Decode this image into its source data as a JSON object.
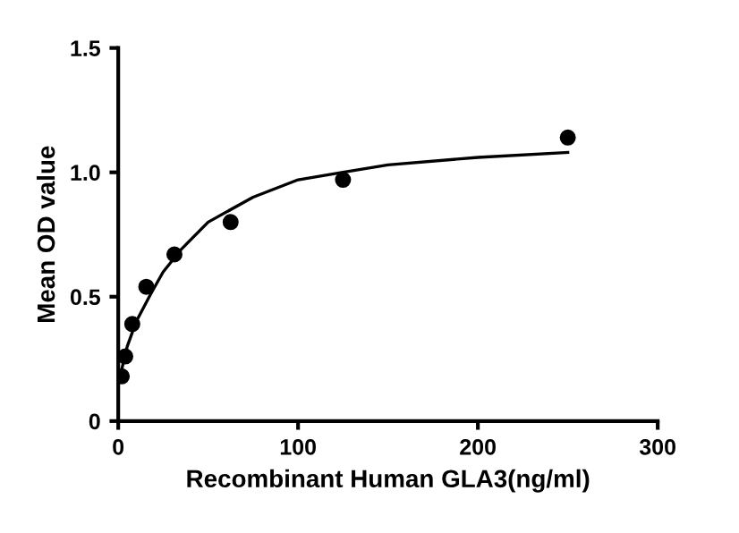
{
  "chart_data": {
    "type": "scatter",
    "xlabel": "Recombinant Human GLA3(ng/ml)",
    "ylabel": "Mean OD value",
    "xlim": [
      0,
      300
    ],
    "xticks": [
      0,
      100,
      200,
      300
    ],
    "ylim": [
      0,
      1.5
    ],
    "yticks": [
      0,
      0.5,
      {
        "value": 1.0,
        "label": "1.0"
      },
      1.5
    ],
    "grid": false,
    "marker": "circle",
    "series": [
      {
        "color": "#000000",
        "x": [
          1.95,
          3.9,
          7.8,
          15.6,
          31.25,
          62.5,
          125,
          250
        ],
        "values": [
          0.18,
          0.26,
          0.39,
          0.54,
          0.67,
          0.8,
          0.97,
          1.14
        ]
      },
      {
        "type": "line",
        "color": "#000000",
        "marker": "none",
        "x": [
          0,
          5,
          10,
          18,
          25,
          35,
          50,
          75,
          100,
          125,
          150,
          200,
          250
        ],
        "values": [
          0.15,
          0.3,
          0.4,
          0.51,
          0.6,
          0.69,
          0.8,
          0.9,
          0.97,
          1.0,
          1.03,
          1.06,
          1.08
        ]
      }
    ]
  }
}
